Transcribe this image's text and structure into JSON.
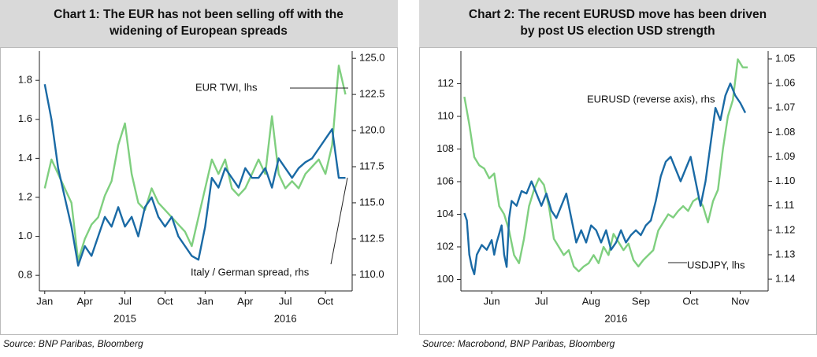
{
  "chart_data": [
    {
      "type": "line",
      "title": [
        "Chart 1: The EUR has not been selling off with the",
        "widening of European spreads"
      ],
      "source": "Source: BNP Paribas, Bloomberg",
      "xlim": [
        -0.4,
        23
      ],
      "xticks": [
        {
          "value": 0,
          "label": "Jan"
        },
        {
          "value": 3,
          "label": "Apr"
        },
        {
          "value": 6,
          "label": "Jul"
        },
        {
          "value": 9,
          "label": "Oct"
        },
        {
          "value": 12,
          "label": "Jan"
        },
        {
          "value": 15,
          "label": "Apr"
        },
        {
          "value": 18,
          "label": "Jul"
        },
        {
          "value": 21,
          "label": "Oct"
        }
      ],
      "year_labels": [
        {
          "value": 6,
          "label": "2015"
        },
        {
          "value": 18,
          "label": "2016"
        }
      ],
      "ylim": [
        0.72,
        1.95
      ],
      "yticks": [
        0.8,
        {
          "value": 1.0,
          "label": "1.0"
        },
        1.2,
        1.4,
        1.6,
        1.8
      ],
      "y2lim": [
        108.9,
        125.5
      ],
      "y2ticks": [
        {
          "value": 110,
          "label": "110.0"
        },
        112.5,
        {
          "value": 115,
          "label": "115.0"
        },
        117.5,
        {
          "value": 120,
          "label": "120.0"
        },
        122.5,
        {
          "value": 125,
          "label": "125.0"
        }
      ],
      "series": [
        {
          "name": "Italy / German spread, rhs",
          "color": "#7fcf7f",
          "axis": "y2",
          "x": [
            0,
            0.5,
            1,
            1.5,
            2,
            2.5,
            3,
            3.5,
            4,
            4.5,
            5,
            5.5,
            6,
            6.5,
            7,
            7.5,
            8,
            8.5,
            9,
            9.5,
            10,
            10.5,
            11,
            11.5,
            12,
            12.5,
            13,
            13.5,
            14,
            14.5,
            15,
            15.5,
            16,
            16.5,
            17,
            17.5,
            18,
            18.5,
            19,
            19.5,
            20,
            20.5,
            21,
            21.5,
            22,
            22.5
          ],
          "values": [
            116,
            118,
            117,
            116,
            115,
            111,
            112.5,
            113.5,
            114,
            115.5,
            116.5,
            119,
            120.5,
            117,
            115,
            114.5,
            116,
            115,
            114.5,
            114,
            113.5,
            113,
            112,
            114,
            116,
            118,
            117,
            118,
            116,
            115.5,
            116,
            117,
            118,
            117,
            121,
            117,
            116,
            116.5,
            116,
            117,
            117.5,
            118,
            117,
            119,
            124.5,
            122.5
          ]
        },
        {
          "name": "EUR TWI, lhs",
          "color": "#1a6aa5",
          "axis": "y",
          "x": [
            0,
            0.5,
            1,
            1.5,
            2,
            2.5,
            3,
            3.5,
            4,
            4.5,
            5,
            5.5,
            6,
            6.5,
            7,
            7.5,
            8,
            8.5,
            9,
            9.5,
            10,
            10.5,
            11,
            11.5,
            12,
            12.5,
            13,
            13.5,
            14,
            14.5,
            15,
            15.5,
            16,
            16.5,
            17,
            17.5,
            18,
            18.5,
            19,
            19.5,
            20,
            20.5,
            21,
            21.5,
            22,
            22.5
          ],
          "values": [
            1.78,
            1.6,
            1.35,
            1.2,
            1.05,
            0.85,
            0.95,
            0.9,
            1.0,
            1.1,
            1.05,
            1.15,
            1.05,
            1.1,
            1.0,
            1.15,
            1.2,
            1.1,
            1.05,
            1.1,
            1.0,
            0.95,
            0.9,
            0.88,
            1.05,
            1.3,
            1.25,
            1.35,
            1.3,
            1.25,
            1.35,
            1.3,
            1.3,
            1.35,
            1.25,
            1.4,
            1.35,
            1.3,
            1.35,
            1.38,
            1.4,
            1.45,
            1.5,
            1.55,
            1.3,
            1.3
          ]
        }
      ]
    },
    {
      "type": "line",
      "title": [
        "Chart 2: The recent EURUSD move has been driven",
        "by post US election USD strength"
      ],
      "source": "Source: Macrobond, BNP Paribas, Bloomberg",
      "xlim": [
        -0.12,
        6.06
      ],
      "xticks": [
        {
          "value": 0.5,
          "label": "Jun"
        },
        {
          "value": 1.5,
          "label": "Jul"
        },
        {
          "value": 2.5,
          "label": "Aug"
        },
        {
          "value": 3.5,
          "label": "Sep"
        },
        {
          "value": 4.5,
          "label": "Oct"
        },
        {
          "value": 5.5,
          "label": "Nov"
        }
      ],
      "year_labels": [
        {
          "value": 3,
          "label": "2016"
        }
      ],
      "ylim": [
        99.3,
        114
      ],
      "yticks": [
        100,
        102,
        104,
        106,
        108,
        110,
        112
      ],
      "y2lim": [
        1.1448,
        1.0468
      ],
      "y2ticks": [
        1.05,
        1.06,
        1.07,
        1.08,
        1.09,
        {
          "value": 1.1,
          "label": "1.10"
        },
        1.11,
        1.12,
        1.13,
        1.14
      ],
      "series": [
        {
          "name": "USDJPY, lhs",
          "color": "#7fcf7f",
          "axis": "y",
          "x": [
            -0.05,
            0.05,
            0.15,
            0.25,
            0.35,
            0.45,
            0.55,
            0.65,
            0.75,
            0.85,
            0.95,
            1.05,
            1.15,
            1.25,
            1.35,
            1.45,
            1.55,
            1.65,
            1.75,
            1.85,
            1.95,
            2.05,
            2.15,
            2.25,
            2.35,
            2.45,
            2.55,
            2.65,
            2.75,
            2.85,
            2.95,
            3.05,
            3.15,
            3.25,
            3.35,
            3.45,
            3.55,
            3.65,
            3.75,
            3.85,
            3.95,
            4.05,
            4.15,
            4.25,
            4.35,
            4.45,
            4.55,
            4.65,
            4.75,
            4.85,
            4.95,
            5.05,
            5.15,
            5.25,
            5.35,
            5.45,
            5.55,
            5.65
          ],
          "values": [
            111.2,
            109.5,
            107.5,
            107.0,
            106.8,
            106.2,
            106.5,
            104.5,
            104.0,
            103.0,
            101.5,
            101.0,
            102.5,
            104.5,
            105.5,
            106.2,
            105.8,
            104.5,
            102.5,
            102.0,
            101.5,
            101.8,
            100.8,
            100.5,
            100.8,
            101.0,
            101.5,
            101.0,
            102.0,
            101.5,
            102.8,
            102.3,
            101.8,
            102.2,
            101.2,
            100.8,
            101.2,
            101.5,
            101.8,
            103.0,
            103.5,
            104.0,
            103.8,
            104.2,
            104.5,
            104.2,
            104.8,
            105.0,
            104.5,
            103.5,
            104.8,
            105.5,
            108.0,
            110.0,
            111.0,
            113.5,
            113.0,
            113.0
          ]
        },
        {
          "name": "EURUSD (reverse axis), rhs",
          "color": "#1a6aa5",
          "axis": "y2",
          "x": [
            -0.05,
            0,
            0.05,
            0.1,
            0.15,
            0.2,
            0.3,
            0.4,
            0.5,
            0.55,
            0.6,
            0.7,
            0.75,
            0.8,
            0.85,
            0.9,
            1.0,
            1.1,
            1.2,
            1.3,
            1.4,
            1.5,
            1.6,
            1.7,
            1.8,
            1.9,
            2.0,
            2.1,
            2.2,
            2.3,
            2.4,
            2.5,
            2.6,
            2.7,
            2.8,
            2.9,
            3.0,
            3.1,
            3.2,
            3.3,
            3.4,
            3.5,
            3.6,
            3.7,
            3.8,
            3.9,
            4.0,
            4.1,
            4.2,
            4.3,
            4.4,
            4.5,
            4.6,
            4.7,
            4.8,
            4.9,
            5.0,
            5.1,
            5.2,
            5.3,
            5.4,
            5.5,
            5.6
          ],
          "values": [
            1.113,
            1.116,
            1.13,
            1.135,
            1.138,
            1.13,
            1.126,
            1.128,
            1.124,
            1.13,
            1.125,
            1.118,
            1.13,
            1.135,
            1.115,
            1.108,
            1.11,
            1.104,
            1.105,
            1.1,
            1.105,
            1.11,
            1.105,
            1.112,
            1.115,
            1.11,
            1.105,
            1.115,
            1.125,
            1.12,
            1.125,
            1.118,
            1.12,
            1.125,
            1.12,
            1.128,
            1.125,
            1.12,
            1.125,
            1.122,
            1.12,
            1.122,
            1.118,
            1.116,
            1.108,
            1.098,
            1.092,
            1.09,
            1.095,
            1.1,
            1.095,
            1.09,
            1.1,
            1.11,
            1.1,
            1.085,
            1.07,
            1.075,
            1.065,
            1.06,
            1.065,
            1.068,
            1.072
          ]
        }
      ]
    }
  ]
}
